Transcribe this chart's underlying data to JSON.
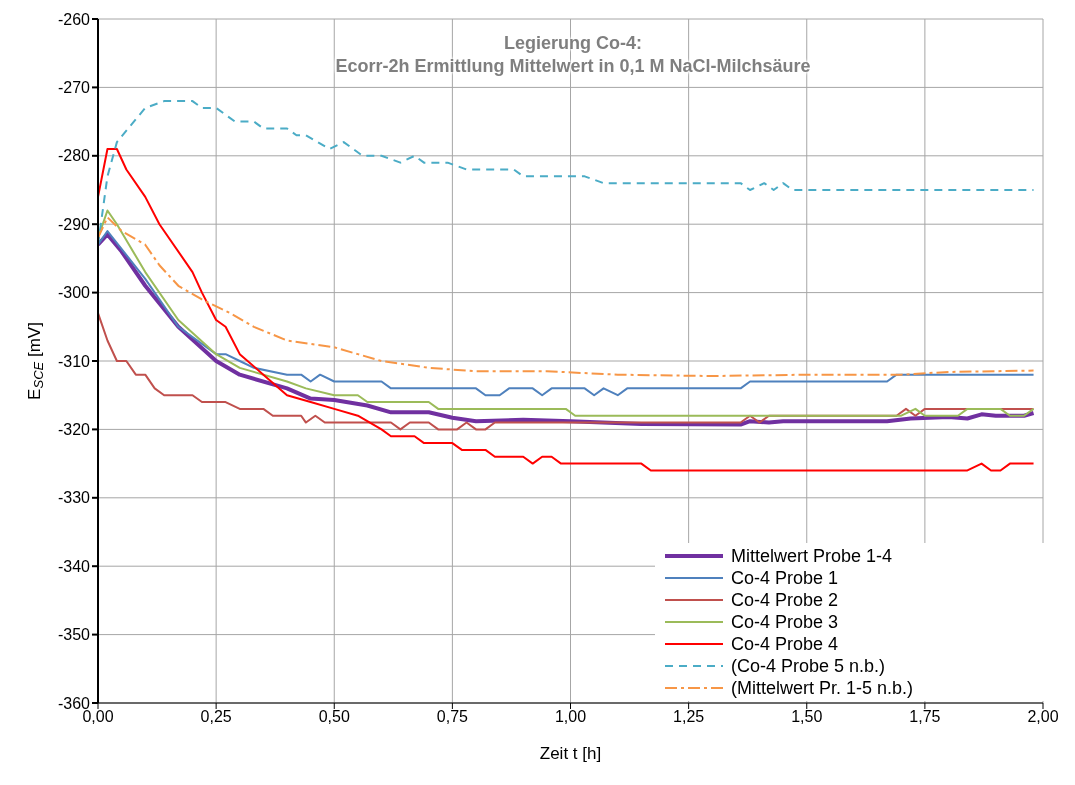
{
  "chart_data": {
    "type": "line",
    "title": "Legierung Co-4:",
    "subtitle": "Ecorr-2h Ermittlung Mittelwert in 0,1 M NaCl-Milchsäure",
    "xlabel": "Zeit t [h]",
    "ylabel": "E$_{SCE}$ [mV]",
    "xlim": [
      0,
      2
    ],
    "xticks": [
      {
        "value": 0,
        "label": "0,00"
      },
      {
        "value": 0.25,
        "label": "0,25"
      },
      {
        "value": 0.5,
        "label": "0,50"
      },
      {
        "value": 0.75,
        "label": "0,75"
      },
      {
        "value": 1,
        "label": "1,00"
      },
      {
        "value": 1.25,
        "label": "1,25"
      },
      {
        "value": 1.5,
        "label": "1,50"
      },
      {
        "value": 1.75,
        "label": "1,75"
      },
      {
        "value": 2,
        "label": "2,00"
      }
    ],
    "ylim": [
      -360,
      -260
    ],
    "yticks": [
      -360,
      -350,
      -340,
      -330,
      -320,
      -310,
      -300,
      -290,
      -280,
      -270,
      -260
    ],
    "grid": true,
    "legend": "bottom right",
    "marker": "none",
    "series": [
      {
        "name": "Mittelwert Probe 1-4",
        "color": "#7030a0",
        "line_style": "solid",
        "x": [
          0,
          0.02,
          0.05,
          0.1,
          0.17,
          0.25,
          0.3,
          0.4,
          0.45,
          0.5,
          0.57,
          0.62,
          0.7,
          0.75,
          0.8,
          0.9,
          1.0,
          1.15,
          1.36,
          1.38,
          1.42,
          1.45,
          1.67,
          1.72,
          1.8,
          1.84,
          1.87,
          1.9,
          1.96,
          1.98
        ],
        "values": [
          -293,
          -291.5,
          -294,
          -299,
          -305,
          -310,
          -312,
          -314,
          -315.5,
          -315.7,
          -316.5,
          -317.5,
          -317.5,
          -318.3,
          -318.8,
          -318.6,
          -318.8,
          -319.2,
          -319.3,
          -318.8,
          -319,
          -318.8,
          -318.8,
          -318.4,
          -318.2,
          -318.4,
          -317.8,
          -318,
          -318,
          -317.6
        ]
      },
      {
        "name": "Co-4 Probe 1",
        "color": "#4f81bd",
        "line_style": "solid",
        "x": [
          0,
          0.02,
          0.1,
          0.17,
          0.25,
          0.27,
          0.3,
          0.33,
          0.4,
          0.43,
          0.45,
          0.47,
          0.5,
          0.6,
          0.62,
          0.8,
          0.82,
          0.85,
          0.87,
          0.92,
          0.94,
          0.96,
          1.03,
          1.05,
          1.07,
          1.1,
          1.12,
          1.36,
          1.38,
          1.67,
          1.69,
          1.98
        ],
        "values": [
          -293,
          -291,
          -298,
          -305,
          -309,
          -309,
          -310,
          -311,
          -312,
          -312,
          -313,
          -312,
          -313,
          -313,
          -314,
          -314,
          -315,
          -315,
          -314,
          -314,
          -315,
          -314,
          -314,
          -315,
          -314,
          -315,
          -314,
          -314,
          -313,
          -313,
          -312,
          -312
        ]
      },
      {
        "name": "Co-4 Probe 2",
        "color": "#c0504d",
        "line_style": "solid",
        "x": [
          0,
          0.02,
          0.04,
          0.06,
          0.08,
          0.1,
          0.12,
          0.14,
          0.2,
          0.22,
          0.27,
          0.3,
          0.35,
          0.37,
          0.43,
          0.44,
          0.46,
          0.48,
          0.62,
          0.64,
          0.66,
          0.7,
          0.72,
          0.76,
          0.78,
          0.8,
          0.82,
          0.84,
          1.36,
          1.38,
          1.4,
          1.42,
          1.69,
          1.71,
          1.73,
          1.75,
          1.98
        ],
        "values": [
          -303,
          -307,
          -310,
          -310,
          -312,
          -312,
          -314,
          -315,
          -315,
          -316,
          -316,
          -317,
          -317,
          -318,
          -318,
          -319,
          -318,
          -319,
          -319,
          -320,
          -319,
          -319,
          -320,
          -320,
          -319,
          -320,
          -320,
          -319,
          -319,
          -318,
          -319,
          -318,
          -318,
          -317,
          -318,
          -317,
          -317
        ]
      },
      {
        "name": "Co-4 Probe 3",
        "color": "#9bbb59",
        "line_style": "solid",
        "x": [
          0,
          0.02,
          0.04,
          0.1,
          0.17,
          0.25,
          0.3,
          0.4,
          0.44,
          0.5,
          0.55,
          0.57,
          0.7,
          0.72,
          0.99,
          1.01,
          1.7,
          1.73,
          1.75,
          1.82,
          1.84,
          1.91,
          1.93,
          1.96,
          1.98
        ],
        "values": [
          -292,
          -288,
          -290,
          -297,
          -304,
          -309,
          -311,
          -313,
          -314,
          -315,
          -315,
          -316,
          -316,
          -317,
          -317,
          -318,
          -318,
          -317,
          -318,
          -318,
          -317,
          -317,
          -318,
          -318,
          -317
        ]
      },
      {
        "name": "Co-4 Probe 4",
        "color": "#ff0000",
        "line_style": "solid",
        "x": [
          0,
          0.02,
          0.04,
          0.06,
          0.1,
          0.13,
          0.2,
          0.22,
          0.25,
          0.27,
          0.3,
          0.35,
          0.4,
          0.45,
          0.5,
          0.55,
          0.6,
          0.62,
          0.67,
          0.69,
          0.75,
          0.77,
          0.82,
          0.84,
          0.9,
          0.92,
          0.94,
          0.96,
          0.98,
          1.15,
          1.17,
          1.84,
          1.87,
          1.89,
          1.91,
          1.93,
          1.98
        ],
        "values": [
          -286,
          -279,
          -279,
          -282,
          -286,
          -290,
          -297,
          -300,
          -304,
          -305,
          -309,
          -312,
          -315,
          -316,
          -317,
          -318,
          -320,
          -321,
          -321,
          -322,
          -322,
          -323,
          -323,
          -324,
          -324,
          -325,
          -324,
          -324,
          -325,
          -325,
          -326,
          -326,
          -325,
          -326,
          -326,
          -325,
          -325
        ]
      },
      {
        "name": "(Co-4 Probe 5 n.b.)",
        "color": "#4bacc6",
        "line_style": "dashed",
        "x": [
          0,
          0.02,
          0.04,
          0.1,
          0.14,
          0.2,
          0.22,
          0.25,
          0.29,
          0.33,
          0.35,
          0.4,
          0.42,
          0.44,
          0.49,
          0.52,
          0.56,
          0.6,
          0.64,
          0.67,
          0.69,
          0.74,
          0.78,
          0.88,
          0.9,
          1.03,
          1.07,
          1.36,
          1.38,
          1.41,
          1.43,
          1.45,
          1.47,
          1.98
        ],
        "values": [
          -293,
          -283,
          -278,
          -273,
          -272,
          -272,
          -273,
          -273,
          -275,
          -275,
          -276,
          -276,
          -277,
          -277,
          -279,
          -278,
          -280,
          -280,
          -281,
          -280,
          -281,
          -281,
          -282,
          -282,
          -283,
          -283,
          -284,
          -284,
          -285,
          -284,
          -285,
          -284,
          -285,
          -285
        ]
      },
      {
        "name": "(Mittelwert Pr. 1-5 n.b.)",
        "color": "#f79646",
        "line_style": "dashdot",
        "x": [
          0,
          0.02,
          0.05,
          0.1,
          0.13,
          0.17,
          0.22,
          0.28,
          0.33,
          0.4,
          0.5,
          0.55,
          0.6,
          0.7,
          0.8,
          0.95,
          1.1,
          1.3,
          1.5,
          1.7,
          1.8,
          1.98
        ],
        "values": [
          -292,
          -289,
          -291,
          -293,
          -296,
          -299,
          -301,
          -303,
          -305,
          -307,
          -308,
          -309,
          -310,
          -311,
          -311.5,
          -311.5,
          -312,
          -312.2,
          -312,
          -312,
          -311.6,
          -311.4
        ]
      }
    ]
  }
}
